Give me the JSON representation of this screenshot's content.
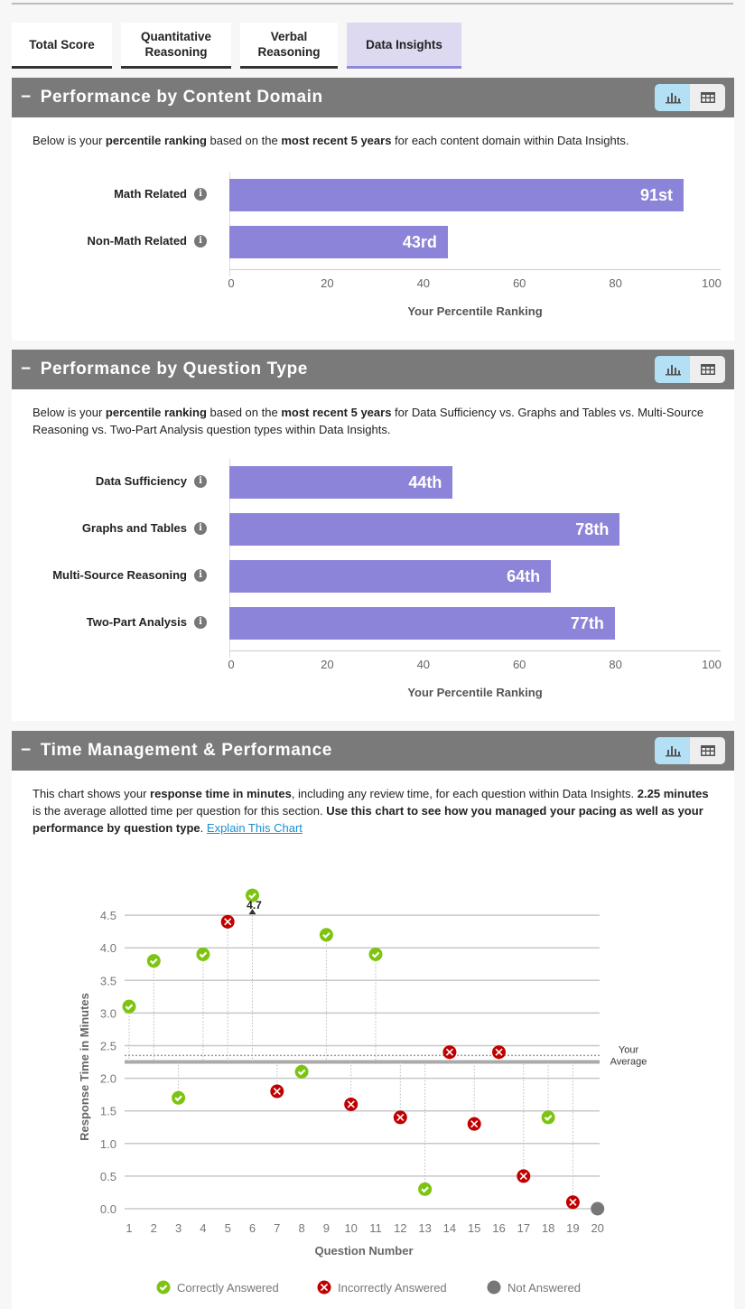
{
  "tabs": [
    {
      "label": "Total Score"
    },
    {
      "label": "Quantitative Reasoning"
    },
    {
      "label": "Verbal Reasoning"
    },
    {
      "label": "Data Insights"
    }
  ],
  "sections": {
    "domain": {
      "title": "Performance by Content Domain",
      "desc": [
        "Below is your ",
        "percentile ranking",
        " based on the ",
        "most recent 5 years",
        " for each content domain within Data Insights."
      ],
      "rows": [
        {
          "label": "Math Related",
          "value": 91,
          "text": "91st"
        },
        {
          "label": "Non-Math Related",
          "value": 43,
          "text": "43rd"
        }
      ],
      "ticks": [
        "0",
        "20",
        "40",
        "60",
        "80",
        "100"
      ],
      "xlabel": "Your Percentile Ranking"
    },
    "qtype": {
      "title": "Performance by Question Type",
      "desc": [
        "Below is your ",
        "percentile ranking",
        " based on the ",
        "most recent 5 years",
        " for Data Sufficiency vs. Graphs and Tables vs. Multi-Source Reasoning vs. Two-Part Analysis question types within Data Insights."
      ],
      "rows": [
        {
          "label": "Data Sufficiency",
          "value": 44,
          "text": "44th"
        },
        {
          "label": "Graphs and Tables",
          "value": 78,
          "text": "78th"
        },
        {
          "label": "Multi-Source Reasoning",
          "value": 64,
          "text": "64th"
        },
        {
          "label": "Two-Part Analysis",
          "value": 77,
          "text": "77th"
        }
      ],
      "ticks": [
        "0",
        "20",
        "40",
        "60",
        "80",
        "100"
      ],
      "xlabel": "Your Percentile Ranking"
    },
    "time": {
      "title": "Time Management & Performance",
      "desc": [
        "This chart shows your ",
        "response time in minutes",
        ", including any review time, for each question within Data Insights. ",
        "2.25 minutes",
        " is the average allotted time per question for this section. ",
        "Use this chart to see how you managed your pacing as well as your performance by question type",
        "."
      ],
      "link": "Explain This Chart"
    }
  },
  "chart_data": {
    "type": "scatter",
    "xlabel": "Question Number",
    "ylabel": "Response Time in Minutes",
    "ylim": [
      0,
      4.5
    ],
    "yticks": [
      "0.0",
      "0.5",
      "1.0",
      "1.5",
      "2.0",
      "2.5",
      "3.0",
      "3.5",
      "4.0",
      "4.5"
    ],
    "x": [
      1,
      2,
      3,
      4,
      5,
      6,
      7,
      8,
      9,
      10,
      11,
      12,
      13,
      14,
      15,
      16,
      17,
      18,
      19,
      20
    ],
    "y": [
      3.1,
      3.8,
      1.7,
      3.9,
      4.4,
      4.7,
      1.8,
      2.1,
      4.2,
      1.6,
      3.9,
      1.4,
      0.3,
      2.4,
      1.3,
      2.4,
      0.5,
      1.4,
      0.1,
      0
    ],
    "status": [
      "c",
      "c",
      "c",
      "c",
      "i",
      "c",
      "i",
      "c",
      "c",
      "i",
      "c",
      "i",
      "c",
      "i",
      "i",
      "i",
      "i",
      "c",
      "i",
      "n"
    ],
    "overflow_label": "4.7",
    "allotted": 2.25,
    "your_average": 2.35,
    "average_label": [
      "Your",
      "Average"
    ],
    "legend": [
      "Correctly Answered",
      "Incorrectly Answered",
      "Not Answered"
    ],
    "colors": {
      "correct": "#7dc412",
      "incorrect": "#c00000",
      "not": "#777777"
    }
  }
}
